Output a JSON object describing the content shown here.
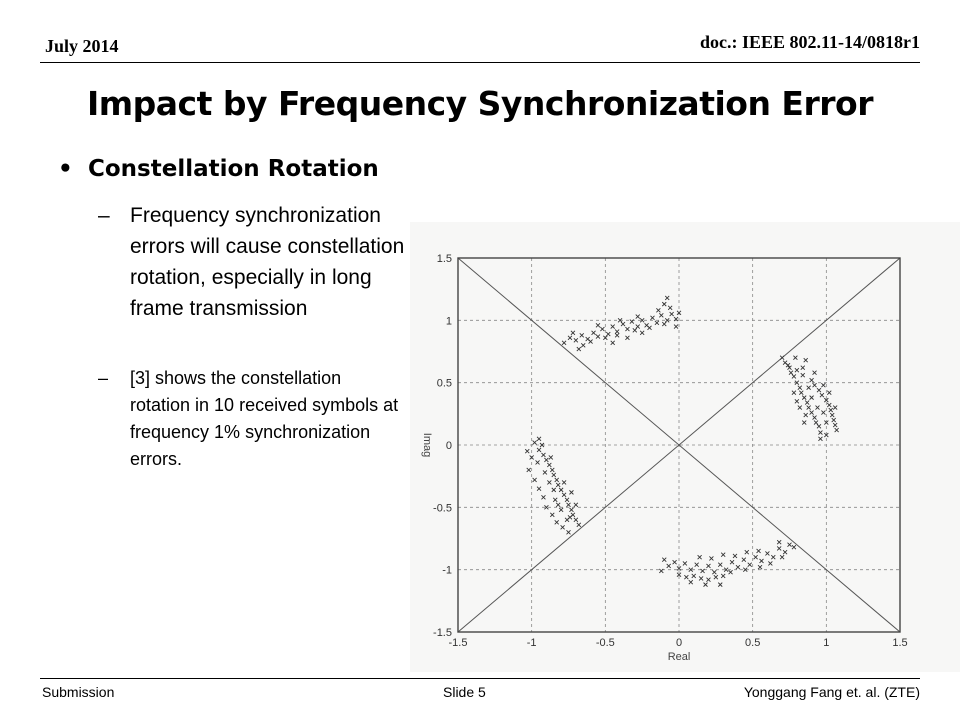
{
  "header": {
    "date": "July 2014",
    "doc": "doc.: IEEE 802.11-14/0818r1"
  },
  "title": "Impact by Frequency Synchronization Error",
  "bullet": {
    "text": "Constellation Rotation",
    "subs": [
      "Frequency synchronization errors will cause constellation rotation, especially in long frame transmission",
      "[3] shows the constellation rotation in 10 received symbols at frequency 1% synchronization errors."
    ]
  },
  "footer": {
    "left": "Submission",
    "center": "Slide 5",
    "right": "Yonggang Fang et. al. (ZTE)"
  },
  "chart_data": {
    "type": "scatter",
    "xlabel": "Real",
    "ylabel": "Imag",
    "xlim": [
      -1.5,
      1.5
    ],
    "ylim": [
      -1.5,
      1.5
    ],
    "xticks": [
      "-1.5",
      "-1",
      "-0.5",
      "0",
      "0.5",
      "1",
      "1.5"
    ],
    "yticks": [
      "1.5",
      "1",
      "0.5",
      "0",
      "-0.5",
      "-1",
      "-1.5"
    ],
    "grid": true,
    "marker": "x",
    "diagonals": [
      [
        [
          -1.5,
          -1.5
        ],
        [
          1.5,
          1.5
        ]
      ],
      [
        [
          -1.5,
          1.5
        ],
        [
          1.5,
          -1.5
        ]
      ]
    ],
    "series": [
      {
        "points": [
          [
            -0.78,
            0.82
          ],
          [
            -0.74,
            0.86
          ],
          [
            -0.7,
            0.84
          ],
          [
            -0.66,
            0.88
          ],
          [
            -0.62,
            0.85
          ],
          [
            -0.58,
            0.9
          ],
          [
            -0.55,
            0.87
          ],
          [
            -0.52,
            0.93
          ],
          [
            -0.48,
            0.89
          ],
          [
            -0.45,
            0.95
          ],
          [
            -0.42,
            0.91
          ],
          [
            -0.38,
            0.97
          ],
          [
            -0.35,
            0.93
          ],
          [
            -0.32,
            0.99
          ],
          [
            -0.28,
            0.95
          ],
          [
            -0.25,
            1.0
          ],
          [
            -0.22,
            0.96
          ],
          [
            -0.18,
            1.02
          ],
          [
            -0.15,
            0.98
          ],
          [
            -0.12,
            1.04
          ],
          [
            -0.08,
            1.0
          ],
          [
            -0.05,
            1.05
          ],
          [
            -0.02,
            1.01
          ],
          [
            0.0,
            1.06
          ],
          [
            -0.65,
            0.8
          ],
          [
            -0.6,
            0.83
          ],
          [
            -0.5,
            0.86
          ],
          [
            -0.42,
            0.88
          ],
          [
            -0.3,
            0.92
          ],
          [
            -0.2,
            0.94
          ],
          [
            -0.1,
            0.97
          ],
          [
            -0.72,
            0.9
          ],
          [
            -0.55,
            0.96
          ],
          [
            -0.4,
            1.0
          ],
          [
            -0.28,
            1.03
          ],
          [
            -0.14,
            1.08
          ],
          [
            -0.06,
            1.1
          ],
          [
            -0.08,
            1.18
          ],
          [
            -0.1,
            1.13
          ],
          [
            -0.45,
            0.82
          ],
          [
            -0.35,
            0.86
          ],
          [
            -0.25,
            0.9
          ],
          [
            -0.68,
            0.77
          ],
          [
            -0.02,
            0.95
          ]
        ]
      },
      {
        "points": [
          [
            0.7,
            0.7
          ],
          [
            0.72,
            0.66
          ],
          [
            0.75,
            0.62
          ],
          [
            0.76,
            0.58
          ],
          [
            0.78,
            0.55
          ],
          [
            0.8,
            0.5
          ],
          [
            0.82,
            0.46
          ],
          [
            0.83,
            0.42
          ],
          [
            0.85,
            0.38
          ],
          [
            0.87,
            0.34
          ],
          [
            0.88,
            0.3
          ],
          [
            0.9,
            0.26
          ],
          [
            0.92,
            0.22
          ],
          [
            0.93,
            0.18
          ],
          [
            0.95,
            0.15
          ],
          [
            0.96,
            0.1
          ],
          [
            0.74,
            0.64
          ],
          [
            0.8,
            0.6
          ],
          [
            0.84,
            0.56
          ],
          [
            0.9,
            0.52
          ],
          [
            0.92,
            0.48
          ],
          [
            0.95,
            0.44
          ],
          [
            0.97,
            0.4
          ],
          [
            1.0,
            0.36
          ],
          [
            1.02,
            0.32
          ],
          [
            1.03,
            0.28
          ],
          [
            1.04,
            0.24
          ],
          [
            1.05,
            0.2
          ],
          [
            1.06,
            0.16
          ],
          [
            1.07,
            0.12
          ],
          [
            0.78,
            0.42
          ],
          [
            0.82,
            0.3
          ],
          [
            0.86,
            0.24
          ],
          [
            0.9,
            0.38
          ],
          [
            0.94,
            0.3
          ],
          [
            0.98,
            0.26
          ],
          [
            1.0,
            0.18
          ],
          [
            0.88,
            0.46
          ],
          [
            0.84,
            0.62
          ],
          [
            0.92,
            0.58
          ],
          [
            0.98,
            0.48
          ],
          [
            1.02,
            0.42
          ],
          [
            0.79,
            0.7
          ],
          [
            0.86,
            0.68
          ],
          [
            0.96,
            0.05
          ],
          [
            1.0,
            0.08
          ],
          [
            1.06,
            0.3
          ],
          [
            0.8,
            0.35
          ],
          [
            0.85,
            0.18
          ]
        ]
      },
      {
        "points": [
          [
            -0.95,
            0.05
          ],
          [
            -0.93,
            0.0
          ],
          [
            -0.95,
            -0.04
          ],
          [
            -0.92,
            -0.08
          ],
          [
            -0.9,
            -0.12
          ],
          [
            -0.88,
            -0.16
          ],
          [
            -0.86,
            -0.2
          ],
          [
            -0.85,
            -0.24
          ],
          [
            -0.83,
            -0.28
          ],
          [
            -0.82,
            -0.32
          ],
          [
            -0.8,
            -0.36
          ],
          [
            -0.78,
            -0.4
          ],
          [
            -0.76,
            -0.44
          ],
          [
            -0.75,
            -0.48
          ],
          [
            -0.73,
            -0.52
          ],
          [
            -0.72,
            -0.56
          ],
          [
            -0.7,
            -0.6
          ],
          [
            -0.68,
            -0.64
          ],
          [
            -1.0,
            -0.1
          ],
          [
            -1.02,
            -0.2
          ],
          [
            -0.98,
            -0.28
          ],
          [
            -0.95,
            -0.35
          ],
          [
            -0.92,
            -0.42
          ],
          [
            -0.9,
            -0.5
          ],
          [
            -0.86,
            -0.56
          ],
          [
            -0.83,
            -0.62
          ],
          [
            -0.79,
            -0.66
          ],
          [
            -0.75,
            -0.7
          ],
          [
            -0.88,
            -0.3
          ],
          [
            -0.84,
            -0.44
          ],
          [
            -0.8,
            -0.52
          ],
          [
            -0.76,
            -0.6
          ],
          [
            -0.96,
            -0.14
          ],
          [
            -0.91,
            -0.22
          ],
          [
            -0.85,
            -0.36
          ],
          [
            -0.82,
            -0.48
          ],
          [
            -0.74,
            -0.58
          ],
          [
            -0.7,
            -0.48
          ],
          [
            -0.73,
            -0.38
          ],
          [
            -0.98,
            0.02
          ],
          [
            -1.03,
            -0.05
          ],
          [
            -0.87,
            -0.1
          ],
          [
            -0.78,
            -0.3
          ]
        ]
      },
      {
        "points": [
          [
            -0.1,
            -0.92
          ],
          [
            -0.07,
            -0.97
          ],
          [
            -0.03,
            -0.94
          ],
          [
            0.0,
            -0.99
          ],
          [
            0.04,
            -0.95
          ],
          [
            0.08,
            -1.0
          ],
          [
            0.12,
            -0.96
          ],
          [
            0.16,
            -1.01
          ],
          [
            0.2,
            -0.97
          ],
          [
            0.24,
            -1.02
          ],
          [
            0.28,
            -0.96
          ],
          [
            0.32,
            -1.0
          ],
          [
            0.36,
            -0.94
          ],
          [
            0.4,
            -0.98
          ],
          [
            0.44,
            -0.92
          ],
          [
            0.48,
            -0.96
          ],
          [
            0.52,
            -0.9
          ],
          [
            0.56,
            -0.93
          ],
          [
            0.6,
            -0.87
          ],
          [
            0.64,
            -0.9
          ],
          [
            0.68,
            -0.83
          ],
          [
            0.72,
            -0.86
          ],
          [
            0.75,
            -0.8
          ],
          [
            0.78,
            -0.82
          ],
          [
            0.0,
            -1.04
          ],
          [
            0.05,
            -1.06
          ],
          [
            0.1,
            -1.05
          ],
          [
            0.15,
            -1.07
          ],
          [
            0.2,
            -1.08
          ],
          [
            0.25,
            -1.06
          ],
          [
            0.3,
            -1.05
          ],
          [
            0.35,
            -1.02
          ],
          [
            0.45,
            -1.0
          ],
          [
            0.55,
            -0.98
          ],
          [
            0.62,
            -0.95
          ],
          [
            0.7,
            -0.9
          ],
          [
            0.14,
            -0.9
          ],
          [
            0.22,
            -0.91
          ],
          [
            0.3,
            -0.88
          ],
          [
            0.38,
            -0.89
          ],
          [
            0.46,
            -0.86
          ],
          [
            0.54,
            -0.85
          ],
          [
            0.08,
            -1.1
          ],
          [
            0.18,
            -1.12
          ],
          [
            -0.12,
            -1.01
          ],
          [
            0.28,
            -1.12
          ],
          [
            0.68,
            -0.78
          ]
        ]
      }
    ]
  }
}
